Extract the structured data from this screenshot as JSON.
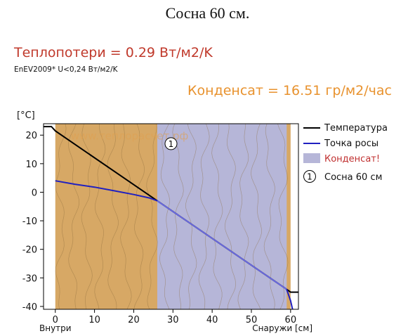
{
  "caption": "Сосна 60 см.",
  "heat_loss_text": "Теплопотери = 0.29 Вт/м2/K",
  "norm_text": "EnEV2009* U<0,24 Вт/м2/K",
  "condensate_text": "Конденсат = 16.51 гр/м2/час",
  "watermark": "www.теплорасчет.рф",
  "colors": {
    "wood": "#d7a865",
    "wood_grain": "#8a6a3c",
    "condensate_zone": "#b6b6d8",
    "temperature": "#000000",
    "dew_point": "#2020c0",
    "dew_point_in_zone": "#6a6ae8",
    "condensate_legend": "#c03030",
    "watermark": "#e0a050"
  },
  "chart_data": {
    "type": "line",
    "ylabel": "[°C]",
    "xlabel_left": "Внутри",
    "xlabel_right": "Снаружи [см]",
    "xlim": [
      -3,
      62
    ],
    "ylim": [
      -41,
      24
    ],
    "xticks": [
      0,
      10,
      20,
      30,
      40,
      50,
      60
    ],
    "yticks": [
      20,
      10,
      0,
      -10,
      -20,
      -30,
      -40
    ],
    "grid": false,
    "legend_position": "right",
    "layer": {
      "label": "1",
      "name": "Сосна 60 см",
      "x_start": 0,
      "x_end": 60
    },
    "condensate_zone": [
      26,
      59
    ],
    "series": [
      {
        "name": "Температура",
        "x": [
          -3,
          -1,
          0,
          26,
          59,
          60,
          62
        ],
        "y": [
          23,
          23,
          21.5,
          -3,
          -34,
          -35,
          -35
        ]
      },
      {
        "name": "Точка росы",
        "x": [
          0,
          5,
          10,
          15,
          20,
          24,
          26,
          59,
          60,
          60.5
        ],
        "y": [
          4,
          2.8,
          1.8,
          0.5,
          -0.8,
          -2,
          -3,
          -34,
          -38,
          -41
        ]
      }
    ],
    "legend": [
      {
        "kind": "line",
        "label": "Температура",
        "series": 0
      },
      {
        "kind": "line",
        "label": "Точка росы",
        "series": 1
      },
      {
        "kind": "area",
        "label": "Конденсат!"
      },
      {
        "kind": "layer",
        "label": "1",
        "text": "Сосна 60 см"
      }
    ]
  }
}
